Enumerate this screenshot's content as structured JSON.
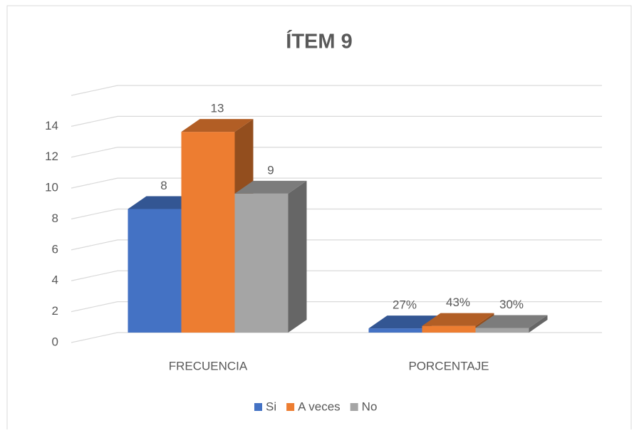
{
  "chart_data": {
    "type": "bar3d",
    "title": "ÍTEM 9",
    "categories": [
      "FRECUENCIA",
      "PORCENTAJE"
    ],
    "series": [
      {
        "name": "Si",
        "color": "#4472c4",
        "values": [
          8,
          0.27
        ],
        "value_labels": [
          "8",
          "27%"
        ]
      },
      {
        "name": "A veces",
        "color": "#ed7d31",
        "values": [
          13,
          0.43
        ],
        "value_labels": [
          "13",
          "43%"
        ]
      },
      {
        "name": "No",
        "color": "#a5a5a5",
        "values": [
          9,
          0.3
        ],
        "value_labels": [
          "9",
          "30%"
        ]
      }
    ],
    "ylim": [
      0,
      16
    ],
    "yticks": [
      0,
      2,
      4,
      6,
      8,
      10,
      12,
      14
    ],
    "grid": true,
    "legend": "bottom"
  }
}
